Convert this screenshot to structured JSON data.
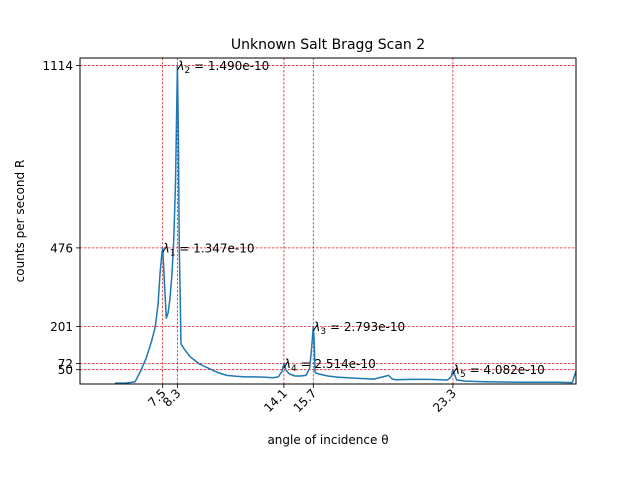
{
  "chart_data": {
    "type": "line",
    "title": "Unknown Salt Bragg Scan 2",
    "xlabel": "angle of incidence θ",
    "ylabel": "counts per second R",
    "xlim": [
      3.0,
      30.0
    ],
    "ylim": [
      0,
      1140
    ],
    "grid": false,
    "colors": {
      "line": "#1f77b4",
      "guides": "#d62728",
      "frame": "#000000"
    },
    "x_ticks": [
      {
        "value": 7.5,
        "label": "7.5"
      },
      {
        "value": 8.3,
        "label": "8.3"
      },
      {
        "value": 14.1,
        "label": "14.1"
      },
      {
        "value": 15.7,
        "label": "15.7"
      },
      {
        "value": 23.3,
        "label": "23.3"
      }
    ],
    "y_ticks": [
      {
        "value": 50,
        "label": "50"
      },
      {
        "value": 72,
        "label": "72"
      },
      {
        "value": 201,
        "label": "201"
      },
      {
        "value": 476,
        "label": "476"
      },
      {
        "value": 1114,
        "label": "1114"
      }
    ],
    "peaks": [
      {
        "name": "λ1",
        "sub": "1",
        "x": 7.5,
        "y": 476,
        "text": " = 1.347e-10"
      },
      {
        "name": "λ2",
        "sub": "2",
        "x": 8.3,
        "y": 1114,
        "text": " = 1.490e-10"
      },
      {
        "name": "λ3",
        "sub": "3",
        "x": 15.7,
        "y": 201,
        "text": " = 2.793e-10"
      },
      {
        "name": "λ4",
        "sub": "4",
        "x": 14.1,
        "y": 72,
        "text": " = 2.514e-10"
      },
      {
        "name": "λ5",
        "sub": "5",
        "x": 23.3,
        "y": 50,
        "text": " = 4.082e-10"
      }
    ],
    "series": [
      {
        "x": [
          4.9,
          5.5,
          6.0,
          6.3,
          6.6,
          6.9,
          7.1,
          7.25,
          7.35,
          7.45,
          7.5,
          7.6,
          7.7,
          7.8,
          7.9,
          8.0,
          8.1,
          8.2,
          8.3,
          8.35,
          8.4,
          8.5,
          8.7,
          9.0,
          9.5,
          10.0,
          10.5,
          11.0,
          11.5,
          12.0,
          12.5,
          13.0,
          13.5,
          13.8,
          14.0,
          14.1,
          14.2,
          14.4,
          14.7,
          15.0,
          15.3,
          15.5,
          15.6,
          15.7,
          15.75,
          15.8,
          16.0,
          16.5,
          17.0,
          18.0,
          19.0,
          19.8,
          20.0,
          20.2,
          21.0,
          22.0,
          23.0,
          23.2,
          23.3,
          23.5,
          24.0,
          25.0,
          26.0,
          27.0,
          28.0,
          29.0,
          29.8,
          30.0
        ],
        "y": [
          3,
          3,
          8,
          45,
          90,
          150,
          200,
          280,
          380,
          450,
          476,
          350,
          230,
          250,
          300,
          380,
          500,
          700,
          1114,
          900,
          500,
          140,
          120,
          95,
          70,
          55,
          40,
          30,
          27,
          25,
          25,
          24,
          22,
          25,
          45,
          72,
          50,
          35,
          28,
          28,
          30,
          55,
          120,
          201,
          150,
          40,
          35,
          28,
          24,
          20,
          17,
          30,
          17,
          15,
          16,
          16,
          14,
          25,
          50,
          14,
          10,
          8,
          7,
          6,
          6,
          6,
          5,
          45
        ]
      }
    ]
  }
}
